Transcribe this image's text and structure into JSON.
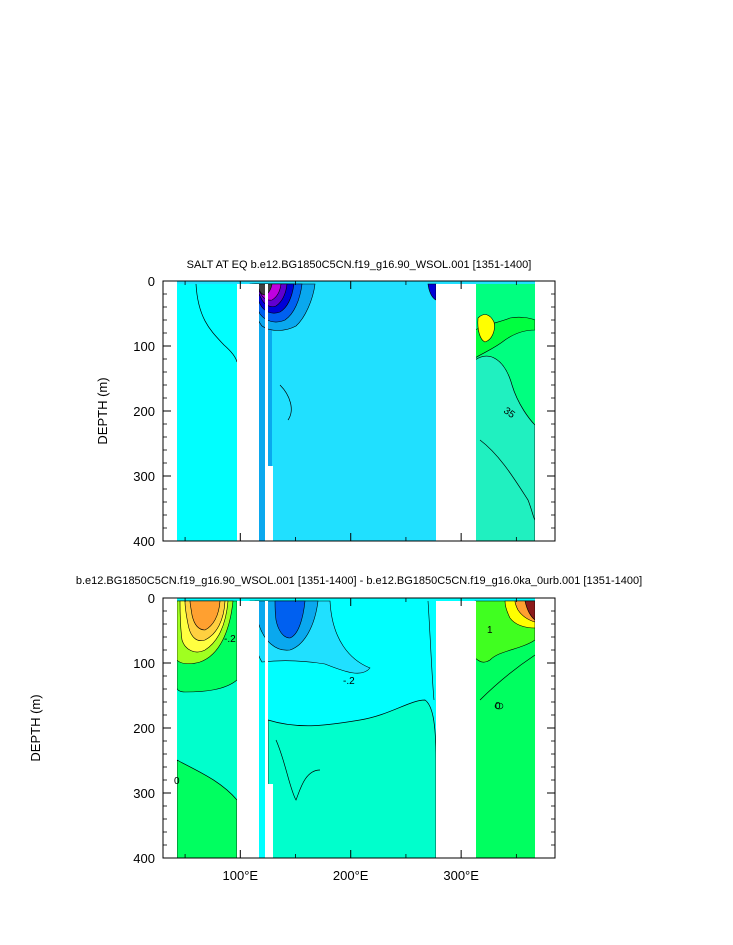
{
  "chart_data": [
    {
      "type": "contour",
      "title": "SALT AT EQ b.e12.BG1850C5CN.f19_g16.90_WSOL.001 [1351-1400]",
      "ylabel": "DEPTH (m)",
      "xlabel": "",
      "xlim": [
        30,
        385
      ],
      "ylim": [
        400,
        0
      ],
      "y_ticks": [
        0,
        100,
        200,
        300,
        400
      ],
      "x_ticks": [
        100,
        200,
        300
      ],
      "x_tick_labels": [
        "",
        "",
        ""
      ],
      "contour_labels": [
        {
          "text": "35",
          "x": 332,
          "y": 198
        }
      ],
      "colors": {
        "background": "#20E0FF",
        "west": "#00FFFF",
        "east": "#00FF80",
        "land": "#FFFFFF"
      }
    },
    {
      "type": "contour",
      "title": "b.e12.BG1850C5CN.f19_g16.90_WSOL.001 [1351-1400] - b.e12.BG1850C5CN.f19_g16.0ka_0urb.001 [1351-1400]",
      "ylabel": "DEPTH (m)",
      "xlabel": "",
      "xlim": [
        30,
        385
      ],
      "ylim": [
        400,
        0
      ],
      "y_ticks": [
        0,
        100,
        200,
        300,
        400
      ],
      "x_ticks": [
        100,
        200,
        300
      ],
      "x_tick_labels": [
        "100°E",
        "200°E",
        "300°E"
      ],
      "contour_labels": [
        {
          "text": "-.2",
          "x": 83,
          "y": 62
        },
        {
          "text": "-.2",
          "x": 200,
          "y": 125
        },
        {
          "text": "1",
          "x": 323,
          "y": 45
        },
        {
          "text": "0",
          "x": 346,
          "y": 165
        },
        {
          "text": "0",
          "x": 45,
          "y": 280
        }
      ],
      "colors": {
        "background": "#00FFFF",
        "deep": "#00FFCC",
        "west_deep": "#00FF60",
        "east": "#00FF60",
        "land": "#FFFFFF"
      }
    }
  ]
}
